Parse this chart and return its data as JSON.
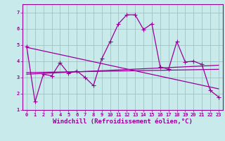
{
  "xlabel": "Windchill (Refroidissement éolien,°C)",
  "background_color": "#c8eaea",
  "line_color": "#990099",
  "grid_color": "#99bbbb",
  "xlim": [
    -0.5,
    23.5
  ],
  "ylim": [
    1.0,
    7.5
  ],
  "xticks": [
    0,
    1,
    2,
    3,
    4,
    5,
    6,
    7,
    8,
    9,
    10,
    11,
    12,
    13,
    14,
    15,
    16,
    17,
    18,
    19,
    20,
    21,
    22,
    23
  ],
  "yticks": [
    1,
    2,
    3,
    4,
    5,
    6,
    7
  ],
  "series1_x": [
    0,
    1,
    2,
    3,
    4,
    5,
    6,
    7,
    8,
    9,
    10,
    11,
    12,
    13,
    14,
    15,
    16,
    17,
    18,
    19,
    20,
    21,
    22,
    23
  ],
  "series1_y": [
    4.9,
    1.5,
    3.2,
    3.1,
    3.9,
    3.25,
    3.4,
    3.0,
    2.5,
    4.15,
    5.2,
    6.3,
    6.85,
    6.85,
    5.95,
    6.3,
    3.65,
    3.5,
    5.2,
    3.95,
    4.0,
    3.8,
    2.2,
    1.8
  ],
  "trend1_x": [
    0,
    23
  ],
  "trend1_y": [
    4.85,
    2.3
  ],
  "trend2_x": [
    0,
    23
  ],
  "trend2_y": [
    3.2,
    3.75
  ],
  "trend3_x": [
    0,
    23
  ],
  "trend3_y": [
    3.3,
    3.5
  ],
  "marker": "+",
  "markersize": 4,
  "linewidth": 0.9,
  "tick_fontsize": 5,
  "label_fontsize": 6.5
}
